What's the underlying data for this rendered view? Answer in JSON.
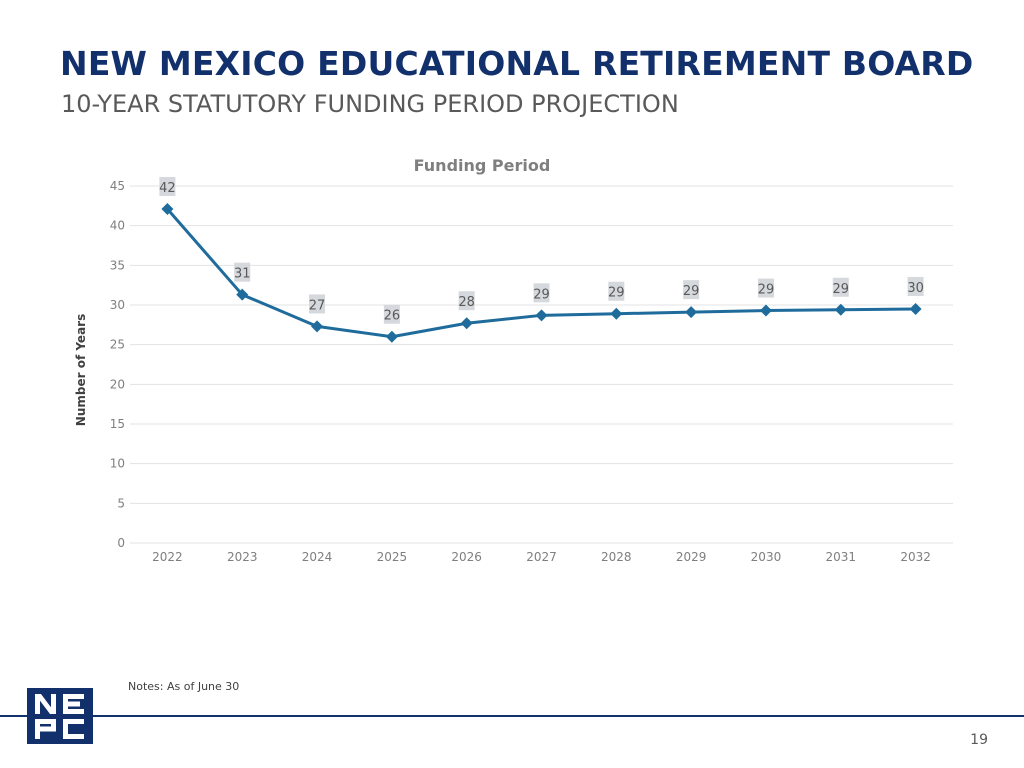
{
  "slide": {
    "title": "NEW MEXICO EDUCATIONAL RETIREMENT BOARD",
    "subtitle": "10-YEAR STATUTORY FUNDING PERIOD PROJECTION",
    "notes": "Notes: As of June 30",
    "page_number": "19",
    "logo_text": "NEPC"
  },
  "colors": {
    "title": "#12306b",
    "line": "#1f6c9c",
    "label_bg": "#d5d8dc",
    "grid": "#e3e3e3"
  },
  "chart_data": {
    "type": "line",
    "title": "Funding Period",
    "ylabel": "Number of Years",
    "xlabel": "",
    "ylim": [
      0,
      45
    ],
    "yticks": [
      0,
      5,
      10,
      15,
      20,
      25,
      30,
      35,
      40,
      45
    ],
    "grid": true,
    "marker": "diamond",
    "categories": [
      "2022",
      "2023",
      "2024",
      "2025",
      "2026",
      "2027",
      "2028",
      "2029",
      "2030",
      "2031",
      "2032"
    ],
    "values": [
      42.1,
      31.3,
      27.3,
      26.0,
      27.7,
      28.7,
      28.9,
      29.1,
      29.3,
      29.4,
      29.5
    ],
    "data_labels": [
      "42",
      "31",
      "27",
      "26",
      "28",
      "29",
      "29",
      "29",
      "29",
      "29",
      "30"
    ]
  }
}
